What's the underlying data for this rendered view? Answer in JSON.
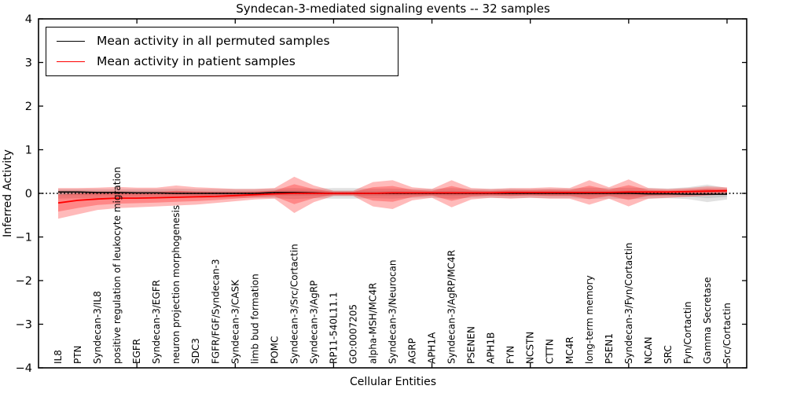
{
  "figure": {
    "title": "Syndecan-3-mediated signaling events -- 32 samples",
    "xlabel": "Cellular Entities",
    "ylabel": "Inferred Activity"
  },
  "legend": {
    "items": [
      {
        "label": "Mean activity in all permuted samples",
        "color": "#000000"
      },
      {
        "label": "Mean activity in patient samples",
        "color": "#ff0000"
      }
    ]
  },
  "chart_data": {
    "type": "line",
    "title": "Syndecan-3-mediated signaling events -- 32 samples",
    "xlabel": "Cellular Entities",
    "ylabel": "Inferred Activity",
    "ylim": [
      -4,
      4
    ],
    "yticks": [
      4,
      3,
      2,
      1,
      0,
      -1,
      -2,
      -3,
      -4
    ],
    "ytick_labels": [
      "4",
      "3",
      "2",
      "1",
      "0",
      "−1",
      "−2",
      "−3",
      "−4"
    ],
    "xtick_positions": [
      5,
      10,
      15,
      20,
      25,
      30,
      35
    ],
    "grid": false,
    "legend_position": "upper left",
    "zero_line_style": "dotted",
    "categories": [
      "IL8",
      "PTN",
      "Syndecan-3/IL8",
      "positive regulation of leukocyte migration",
      "EGFR",
      "Syndecan-3/EGFR",
      "neuron projection morphogenesis",
      "SDC3",
      "FGFR/FGF/Syndecan-3",
      "Syndecan-3/CASK",
      "limb bud formation",
      "POMC",
      "Syndecan-3/Src/Cortactin",
      "Syndecan-3/AgRP",
      "RP11-540L11.1",
      "GO:0007205",
      "alpha-MSH/MC4R",
      "Syndecan-3/Neurocan",
      "AGRP",
      "APH1A",
      "Syndecan-3/AgRP/MC4R",
      "PSENEN",
      "APH1B",
      "FYN",
      "NCSTN",
      "CTTN",
      "MC4R",
      "long-term memory",
      "PSEN1",
      "Syndecan-3/Fyn/Cortactin",
      "NCAN",
      "SRC",
      "Fyn/Cortactin",
      "Gamma Secretase",
      "Src/Cortactin"
    ],
    "series": [
      {
        "name": "Mean activity in all permuted samples",
        "color": "#000000",
        "values": [
          0.03,
          0.03,
          0.02,
          0.02,
          0.01,
          0.01,
          0.0,
          0.0,
          0.0,
          0.0,
          0.0,
          0.02,
          0.02,
          0.01,
          0.0,
          0.0,
          0.0,
          0.0,
          0.0,
          0.0,
          0.0,
          0.0,
          0.0,
          0.0,
          0.0,
          0.0,
          0.0,
          0.0,
          0.0,
          0.0,
          -0.01,
          -0.01,
          -0.02,
          -0.02,
          -0.02
        ]
      },
      {
        "name": "Mean activity in patient samples",
        "color": "#ff0000",
        "values": [
          -0.22,
          -0.16,
          -0.13,
          -0.11,
          -0.11,
          -0.1,
          -0.09,
          -0.08,
          -0.07,
          -0.05,
          -0.03,
          -0.01,
          0.0,
          0.0,
          0.0,
          0.0,
          0.0,
          0.01,
          0.01,
          0.01,
          0.01,
          0.01,
          0.01,
          0.02,
          0.02,
          0.02,
          0.02,
          0.02,
          0.02,
          0.03,
          0.03,
          0.03,
          0.04,
          0.05,
          0.06
        ]
      }
    ],
    "bands": [
      {
        "name": "permuted-samples-range",
        "series_index": 0,
        "color": "#787878",
        "alpha": 0.22,
        "inner_scale": 0.5,
        "lo": [
          -0.12,
          -0.11,
          -0.11,
          -0.11,
          -0.1,
          -0.1,
          -0.1,
          -0.1,
          -0.1,
          -0.1,
          -0.1,
          -0.11,
          -0.13,
          -0.11,
          -0.12,
          -0.12,
          -0.11,
          -0.12,
          -0.1,
          -0.1,
          -0.12,
          -0.1,
          -0.1,
          -0.11,
          -0.1,
          -0.11,
          -0.11,
          -0.13,
          -0.12,
          -0.13,
          -0.12,
          -0.11,
          -0.13,
          -0.2,
          -0.14
        ],
        "hi": [
          0.1,
          0.1,
          0.1,
          0.1,
          0.1,
          0.1,
          0.11,
          0.1,
          0.1,
          0.1,
          0.1,
          0.11,
          0.12,
          0.11,
          0.12,
          0.12,
          0.11,
          0.11,
          0.1,
          0.1,
          0.12,
          0.1,
          0.1,
          0.11,
          0.1,
          0.11,
          0.11,
          0.13,
          0.12,
          0.13,
          0.12,
          0.11,
          0.14,
          0.2,
          0.12
        ]
      },
      {
        "name": "patient-samples-range",
        "series_index": 1,
        "color": "#ff0000",
        "alpha": 0.27,
        "inner_scale": 0.55,
        "lo": [
          -0.58,
          -0.48,
          -0.38,
          -0.34,
          -0.32,
          -0.3,
          -0.28,
          -0.26,
          -0.22,
          -0.18,
          -0.14,
          -0.12,
          -0.45,
          -0.2,
          -0.06,
          -0.06,
          -0.3,
          -0.36,
          -0.16,
          -0.1,
          -0.32,
          -0.14,
          -0.1,
          -0.12,
          -0.1,
          -0.12,
          -0.12,
          -0.26,
          -0.12,
          -0.3,
          -0.12,
          -0.1,
          -0.08,
          -0.05,
          -0.02
        ],
        "hi": [
          0.12,
          0.12,
          0.13,
          0.15,
          0.13,
          0.13,
          0.18,
          0.14,
          0.12,
          0.1,
          0.1,
          0.12,
          0.38,
          0.18,
          0.06,
          0.06,
          0.26,
          0.3,
          0.14,
          0.1,
          0.3,
          0.12,
          0.1,
          0.12,
          0.12,
          0.14,
          0.12,
          0.3,
          0.14,
          0.32,
          0.12,
          0.1,
          0.12,
          0.16,
          0.14
        ]
      }
    ]
  }
}
